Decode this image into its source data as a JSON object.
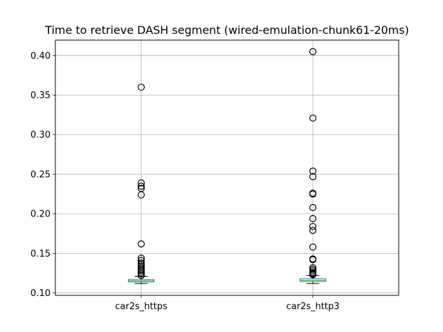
{
  "chart_data": {
    "type": "box",
    "title": "Time to retrieve DASH segment (wired-emulation-chunk61-20ms)",
    "xlabel": "",
    "ylabel": "",
    "ylim": [
      0.097,
      0.4195
    ],
    "yticks": [
      0.1,
      0.15,
      0.2,
      0.25,
      0.3,
      0.35,
      0.4
    ],
    "ytick_labels": [
      "0.10",
      "0.15",
      "0.20",
      "0.25",
      "0.30",
      "0.35",
      "0.40"
    ],
    "grid": true,
    "categories": [
      "car2s_https",
      "car2s_http3"
    ],
    "series": [
      {
        "category": "car2s_https",
        "whisker_low": 0.112,
        "q1": 0.114,
        "median": 0.1155,
        "q3": 0.117,
        "whisker_high": 0.121,
        "outliers": [
          0.36,
          0.239,
          0.235,
          0.232,
          0.224,
          0.162,
          0.144,
          0.141,
          0.138,
          0.136,
          0.134,
          0.132,
          0.13,
          0.128,
          0.126,
          0.124,
          0.122
        ]
      },
      {
        "category": "car2s_http3",
        "whisker_low": 0.112,
        "q1": 0.1145,
        "median": 0.116,
        "q3": 0.118,
        "whisker_high": 0.122,
        "outliers": [
          0.405,
          0.321,
          0.254,
          0.247,
          0.226,
          0.225,
          0.208,
          0.194,
          0.184,
          0.179,
          0.158,
          0.143,
          0.142,
          0.132,
          0.13,
          0.128,
          0.126,
          0.125,
          0.124,
          0.123
        ]
      }
    ]
  },
  "colors": {
    "box": "#1f77b4",
    "median": "#2ca02c",
    "whisker": "#000000",
    "flier": "#000000",
    "grid": "#b0b0b0"
  }
}
